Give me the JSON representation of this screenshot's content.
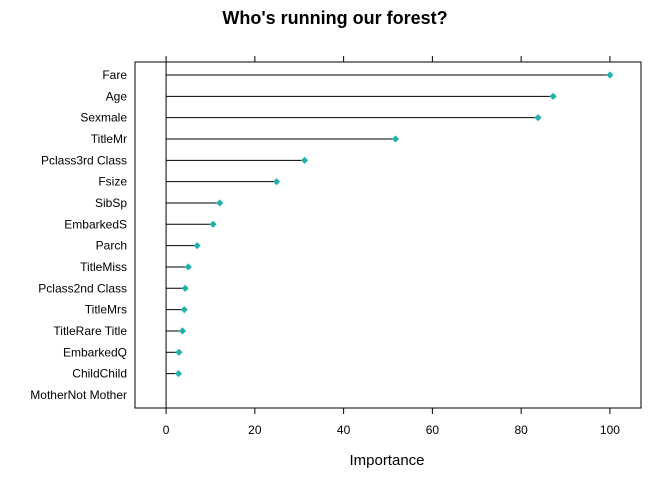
{
  "chart_data": {
    "type": "dotplot",
    "title": "Who's running our forest?",
    "xlabel": "Importance",
    "ylabel": "",
    "xlim": [
      -7,
      107
    ],
    "xticks": [
      0,
      20,
      40,
      60,
      80,
      100
    ],
    "grid": false,
    "categories": [
      "Fare",
      "Age",
      "Sexmale",
      "TitleMr",
      "Pclass3rd Class",
      "Fsize",
      "SibSp",
      "EmbarkedS",
      "Parch",
      "TitleMiss",
      "Pclass2nd Class",
      "TitleMrs",
      "TitleRare Title",
      "EmbarkedQ",
      "ChildChild",
      "MotherNot Mother"
    ],
    "values": [
      100,
      87.2,
      83.8,
      51.7,
      31.2,
      24.9,
      12.1,
      10.6,
      7.0,
      5.0,
      4.3,
      4.1,
      3.7,
      2.9,
      2.8,
      0
    ],
    "point_color": "#20b2aa",
    "line_color": "#000000"
  },
  "tick_text": [
    "0",
    "20",
    "40",
    "60",
    "80",
    "100"
  ]
}
